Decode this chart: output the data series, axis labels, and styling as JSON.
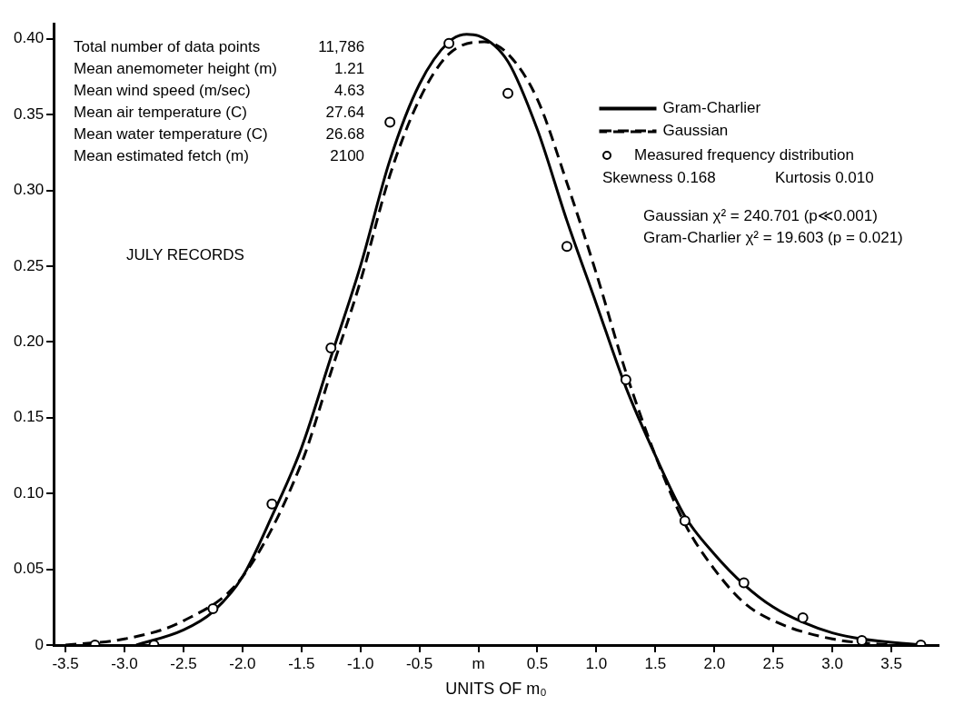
{
  "chart_data": {
    "type": "line",
    "xlabel": "UNITS OF m₀",
    "xlim": [
      -3.6,
      3.9
    ],
    "ylim": [
      0,
      0.41
    ],
    "xticks": [
      -3.5,
      {
        "value": -3,
        "label": "-3.0"
      },
      -2.5,
      {
        "value": -2,
        "label": "-2.0"
      },
      -1.5,
      {
        "value": -1,
        "label": "-1.0"
      },
      -0.5,
      {
        "value": 0,
        "label": "m"
      },
      0.5,
      {
        "value": 1,
        "label": "1.0"
      },
      1.5,
      {
        "value": 2,
        "label": "2.0"
      },
      2.5,
      {
        "value": 3,
        "label": "3.0"
      },
      3.5
    ],
    "yticks": [
      0,
      0.05,
      {
        "value": 0.1,
        "label": "0.10"
      },
      0.15,
      {
        "value": 0.2,
        "label": "0.20"
      },
      0.25,
      {
        "value": 0.3,
        "label": "0.30"
      },
      0.35,
      {
        "value": 0.4,
        "label": "0.40"
      }
    ],
    "grid": false,
    "legend": "top right",
    "series": [
      {
        "name": "Gram-Charlier",
        "type": "line",
        "color": "#000000",
        "line_style": "solid",
        "marker": "none",
        "x": [
          -2.9,
          -2.5,
          -2.25,
          -2,
          -1.75,
          -1.5,
          -1.25,
          -1,
          -0.75,
          -0.5,
          -0.25,
          -0.1,
          0,
          0.25,
          0.5,
          0.75,
          1,
          1.25,
          1.5,
          1.75,
          2,
          2.25,
          2.5,
          2.75,
          3,
          3.25,
          3.75
        ],
        "values": [
          0,
          0.01,
          0.022,
          0.045,
          0.085,
          0.13,
          0.19,
          0.25,
          0.32,
          0.37,
          0.398,
          0.403,
          0.402,
          0.385,
          0.34,
          0.28,
          0.225,
          0.17,
          0.125,
          0.085,
          0.06,
          0.04,
          0.025,
          0.015,
          0.008,
          0.004,
          0
        ]
      },
      {
        "name": "Gaussian",
        "type": "line",
        "color": "#000000",
        "line_style": "dashed",
        "marker": "none",
        "x": [
          -3.5,
          -3,
          -2.5,
          -2,
          -1.5,
          -1.25,
          -1,
          -0.75,
          -0.5,
          -0.25,
          0.05,
          0.25,
          0.5,
          0.75,
          1,
          1.25,
          1.5,
          1.75,
          2,
          2.25,
          2.5,
          3,
          3.5
        ],
        "values": [
          0,
          0.004,
          0.016,
          0.045,
          0.12,
          0.18,
          0.24,
          0.31,
          0.36,
          0.39,
          0.398,
          0.39,
          0.36,
          0.305,
          0.245,
          0.18,
          0.125,
          0.08,
          0.05,
          0.028,
          0.016,
          0.004,
          0
        ]
      },
      {
        "name": "Measured frequency distribution",
        "type": "scatter",
        "color": "#000000",
        "marker": "circle",
        "x": [
          -3.25,
          -2.75,
          -2.25,
          -1.75,
          -1.25,
          -0.75,
          -0.25,
          0.25,
          0.75,
          1.25,
          1.75,
          2.25,
          2.75,
          3.25,
          3.75
        ],
        "values": [
          0,
          0,
          0.024,
          0.093,
          0.196,
          0.345,
          0.397,
          0.364,
          0.263,
          0.175,
          0.082,
          0.041,
          0.018,
          0.003,
          0
        ]
      }
    ],
    "annotations": [
      "Total number of data points 11,786",
      "Mean anemometer height (m) 1.21",
      "Mean wind speed (m/sec) 4.63",
      "Mean air temperature (C) 27.64",
      "Mean water temperature (C) 26.68",
      "Mean estimated fetch (m) 2100",
      "JULY RECORDS",
      "Skewness 0.168",
      "Kurtosis 0.010",
      "Gaussian χ² = 240.701 (p≪0.001)",
      "Gram-Charlier χ² = 19.603 (p = 0.021)"
    ]
  }
}
